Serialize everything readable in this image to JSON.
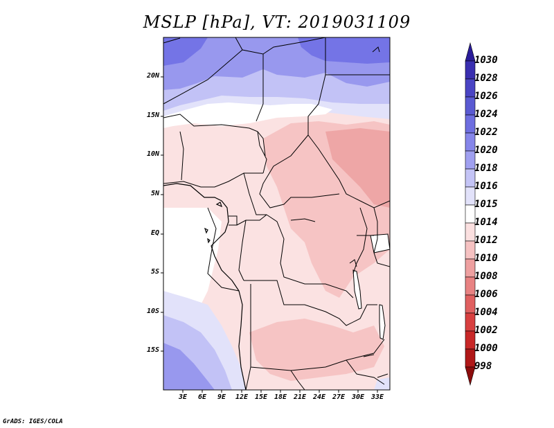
{
  "title": "MSLP [hPa], VT: 2019031109",
  "credit": "GrADS: IGES/COLA",
  "lat_labels": [
    "20N",
    "15N",
    "10N",
    "5N",
    "EQ",
    "5S",
    "10S",
    "15S"
  ],
  "lon_labels": [
    "3E",
    "6E",
    "9E",
    "12E",
    "15E",
    "18E",
    "21E",
    "24E",
    "27E",
    "30E",
    "33E"
  ],
  "colorbar": {
    "levels": [
      "1030",
      "1028",
      "1026",
      "1024",
      "1022",
      "1020",
      "1018",
      "1016",
      "1015",
      "1014",
      "1012",
      "1010",
      "1008",
      "1006",
      "1004",
      "1002",
      "1000",
      "998"
    ],
    "colors": [
      "#2a1c9a",
      "#3a2fb0",
      "#4a44c4",
      "#5a5ad2",
      "#6e6ee0",
      "#8686ea",
      "#a0a0f0",
      "#c4c4f6",
      "#e2e2fa",
      "#ffffff",
      "#fbe0e0",
      "#f6c2c2",
      "#eea0a0",
      "#e88282",
      "#e06060",
      "#d84040",
      "#c82828",
      "#b01818",
      "#8c0c0c"
    ]
  },
  "field_colors": {
    "high_dark": "#7474e6",
    "high_mid": "#9898ee",
    "high_light": "#c2c2f6",
    "high_pale": "#e2e2fa",
    "neutral": "#ffffff",
    "low_pale": "#fbe2e2",
    "low_light": "#f6c4c4",
    "low_mid": "#eea6a6",
    "water": "#ffffff"
  }
}
